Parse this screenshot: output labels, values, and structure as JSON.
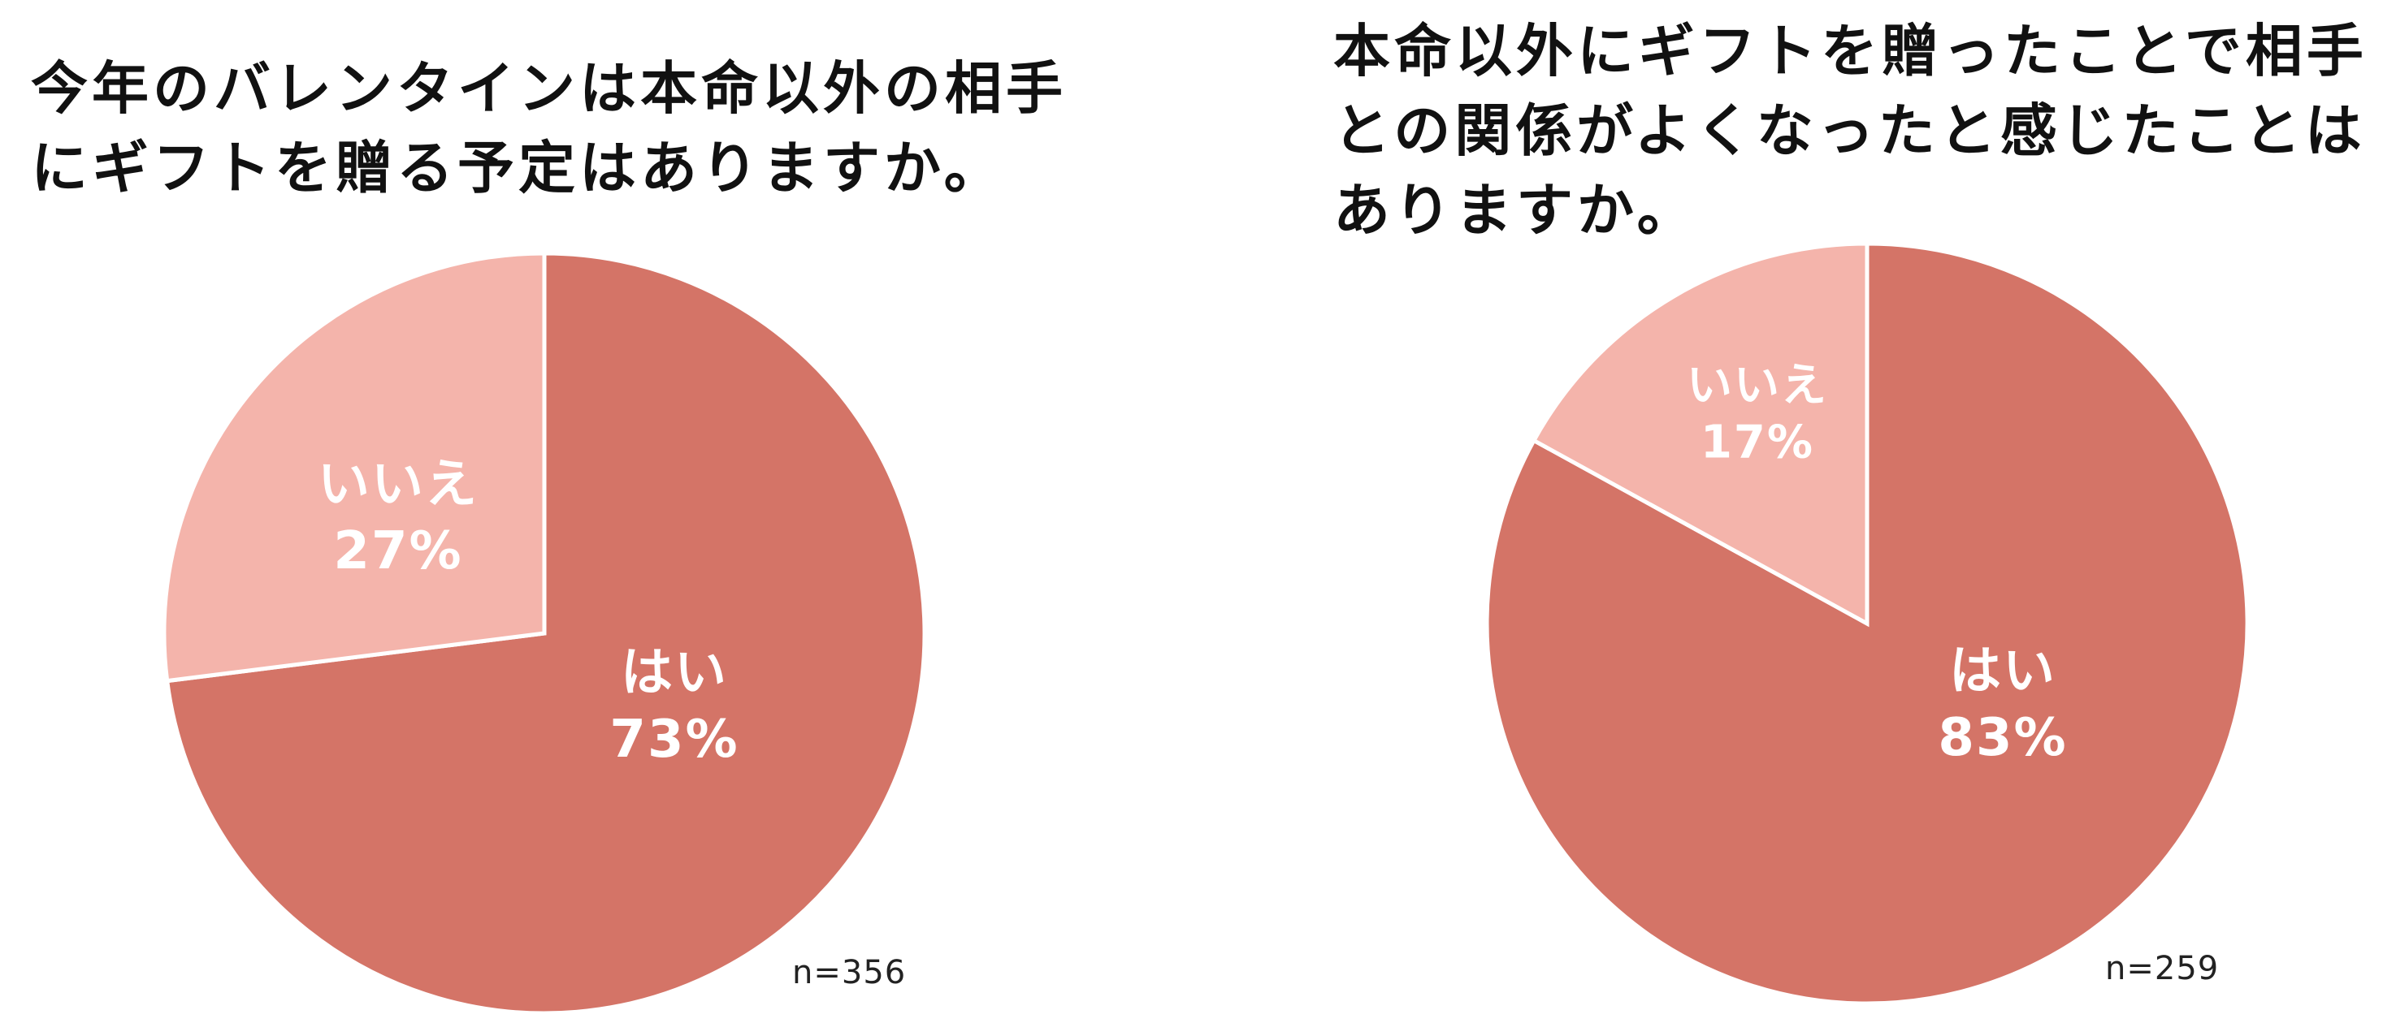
{
  "chart_data": [
    {
      "type": "pie",
      "title": "今年のバレンタインは本命以外の相手\nにギフトを贈る予定はありますか。",
      "slices": [
        {
          "label": "はい",
          "value": 73,
          "value_label": "73%",
          "color": "#d47467"
        },
        {
          "label": "いいえ",
          "value": 27,
          "value_label": "27%",
          "color": "#f4b4ab"
        }
      ],
      "start_angle": "12 o'clock",
      "direction": "clockwise",
      "legend": "none",
      "n_label": "n=356"
    },
    {
      "type": "pie",
      "title": "本命以外にギフトを贈ったことで相手\nとの関係がよくなったと感じたことは\nありますか。",
      "slices": [
        {
          "label": "はい",
          "value": 83,
          "value_label": "83%",
          "color": "#d47467"
        },
        {
          "label": "いいえ",
          "value": 17,
          "value_label": "17%",
          "color": "#f4b4ab"
        }
      ],
      "start_angle": "12 o'clock",
      "direction": "clockwise",
      "legend": "none",
      "n_label": "n=259"
    }
  ]
}
